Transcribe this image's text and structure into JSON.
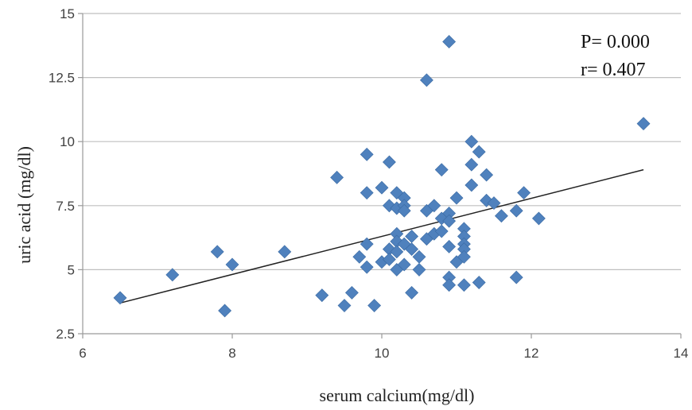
{
  "chart_data": {
    "type": "scatter",
    "xlabel": "serum calcium(mg/dl)",
    "ylabel": "uric acid (mg/dl)",
    "xlim": [
      6,
      14
    ],
    "ylim": [
      2.5,
      15
    ],
    "x_ticks": [
      6,
      8,
      10,
      12,
      14
    ],
    "y_ticks": [
      2.5,
      5,
      7.5,
      10,
      12.5,
      15
    ],
    "x_tick_labels": [
      "6",
      "8",
      "10",
      "12",
      "14"
    ],
    "y_tick_labels": [
      "2.5",
      "5",
      "7.5",
      "10",
      "12.5",
      "15"
    ],
    "grid": "horizontal",
    "annotations": [
      "P= 0.000",
      "r= 0.407"
    ],
    "trendline": {
      "x": [
        6.5,
        13.5
      ],
      "y": [
        3.7,
        8.9
      ]
    },
    "points": [
      [
        6.5,
        3.9
      ],
      [
        7.2,
        4.8
      ],
      [
        7.8,
        5.7
      ],
      [
        7.9,
        3.4
      ],
      [
        8.0,
        5.2
      ],
      [
        8.7,
        5.7
      ],
      [
        9.2,
        4.0
      ],
      [
        9.4,
        8.6
      ],
      [
        9.5,
        3.6
      ],
      [
        9.6,
        4.1
      ],
      [
        9.7,
        5.5
      ],
      [
        9.8,
        9.5
      ],
      [
        9.8,
        8.0
      ],
      [
        9.8,
        6.0
      ],
      [
        9.8,
        5.1
      ],
      [
        9.9,
        3.6
      ],
      [
        10.0,
        8.2
      ],
      [
        10.0,
        5.3
      ],
      [
        10.1,
        9.2
      ],
      [
        10.1,
        7.5
      ],
      [
        10.1,
        5.8
      ],
      [
        10.1,
        5.4
      ],
      [
        10.2,
        8.0
      ],
      [
        10.2,
        7.4
      ],
      [
        10.2,
        6.4
      ],
      [
        10.2,
        6.1
      ],
      [
        10.2,
        5.7
      ],
      [
        10.2,
        5.0
      ],
      [
        10.3,
        7.8
      ],
      [
        10.3,
        7.5
      ],
      [
        10.3,
        7.3
      ],
      [
        10.3,
        6.0
      ],
      [
        10.3,
        5.2
      ],
      [
        10.4,
        6.3
      ],
      [
        10.4,
        5.8
      ],
      [
        10.4,
        4.1
      ],
      [
        10.5,
        5.5
      ],
      [
        10.5,
        5.0
      ],
      [
        10.6,
        12.4
      ],
      [
        10.6,
        7.3
      ],
      [
        10.6,
        6.2
      ],
      [
        10.7,
        7.5
      ],
      [
        10.7,
        6.4
      ],
      [
        10.8,
        8.9
      ],
      [
        10.8,
        7.0
      ],
      [
        10.8,
        6.5
      ],
      [
        10.9,
        13.9
      ],
      [
        10.9,
        7.2
      ],
      [
        10.9,
        6.9
      ],
      [
        10.9,
        5.9
      ],
      [
        10.9,
        4.7
      ],
      [
        10.9,
        4.4
      ],
      [
        11.0,
        7.8
      ],
      [
        11.0,
        5.3
      ],
      [
        11.1,
        6.6
      ],
      [
        11.1,
        6.3
      ],
      [
        11.1,
        6.0
      ],
      [
        11.1,
        5.8
      ],
      [
        11.1,
        5.5
      ],
      [
        11.1,
        4.4
      ],
      [
        11.2,
        10.0
      ],
      [
        11.2,
        9.1
      ],
      [
        11.2,
        8.3
      ],
      [
        11.3,
        9.6
      ],
      [
        11.3,
        4.5
      ],
      [
        11.4,
        8.7
      ],
      [
        11.4,
        7.7
      ],
      [
        11.5,
        7.6
      ],
      [
        11.6,
        7.1
      ],
      [
        11.8,
        7.3
      ],
      [
        11.8,
        4.7
      ],
      [
        11.9,
        8.0
      ],
      [
        12.1,
        7.0
      ],
      [
        13.5,
        10.7
      ]
    ]
  }
}
